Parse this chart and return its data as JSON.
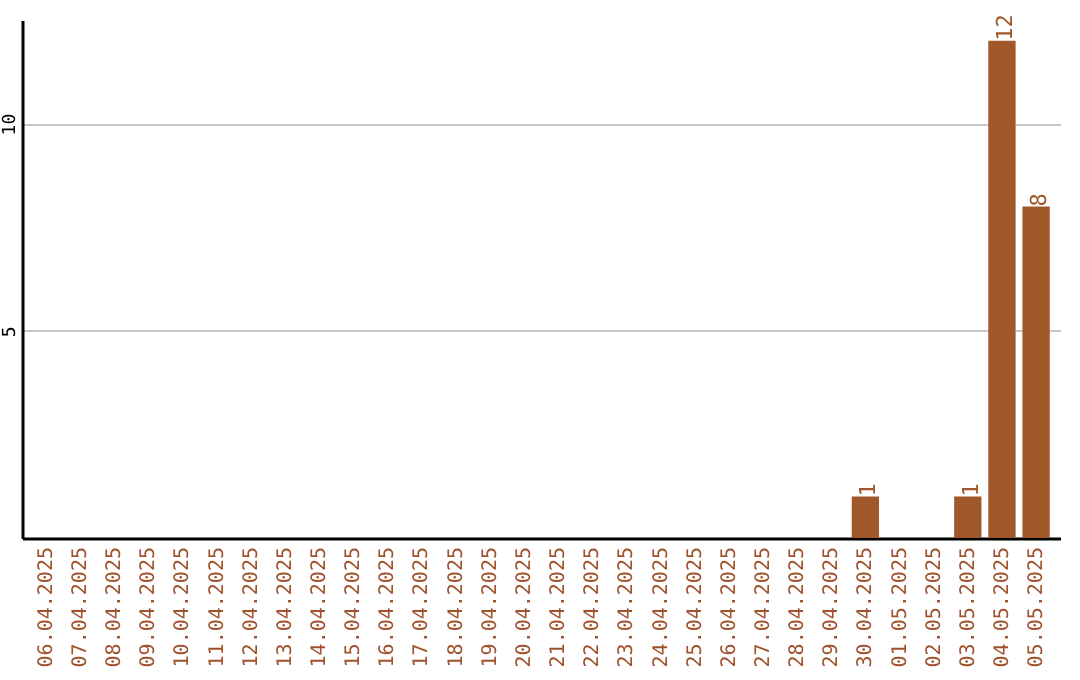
{
  "chart_data": {
    "type": "bar",
    "categories": [
      "06.04.2025",
      "07.04.2025",
      "08.04.2025",
      "09.04.2025",
      "10.04.2025",
      "11.04.2025",
      "12.04.2025",
      "13.04.2025",
      "14.04.2025",
      "15.04.2025",
      "16.04.2025",
      "17.04.2025",
      "18.04.2025",
      "19.04.2025",
      "20.04.2025",
      "21.04.2025",
      "22.04.2025",
      "23.04.2025",
      "24.04.2025",
      "25.04.2025",
      "26.04.2025",
      "27.04.2025",
      "28.04.2025",
      "29.04.2025",
      "30.04.2025",
      "01.05.2025",
      "02.05.2025",
      "03.05.2025",
      "04.05.2025",
      "05.05.2025"
    ],
    "values": [
      0,
      0,
      0,
      0,
      0,
      0,
      0,
      0,
      0,
      0,
      0,
      0,
      0,
      0,
      0,
      0,
      0,
      0,
      0,
      0,
      0,
      0,
      0,
      0,
      1,
      0,
      0,
      1,
      12,
      8
    ],
    "value_labels": [
      null,
      null,
      null,
      null,
      null,
      null,
      null,
      null,
      null,
      null,
      null,
      null,
      null,
      null,
      null,
      null,
      null,
      null,
      null,
      null,
      null,
      null,
      null,
      null,
      "1",
      null,
      null,
      "1",
      "12",
      "8"
    ],
    "color": "#a0582a",
    "ylim": [
      0,
      12.5
    ],
    "yticks": [
      5,
      10
    ],
    "grid": "y"
  }
}
